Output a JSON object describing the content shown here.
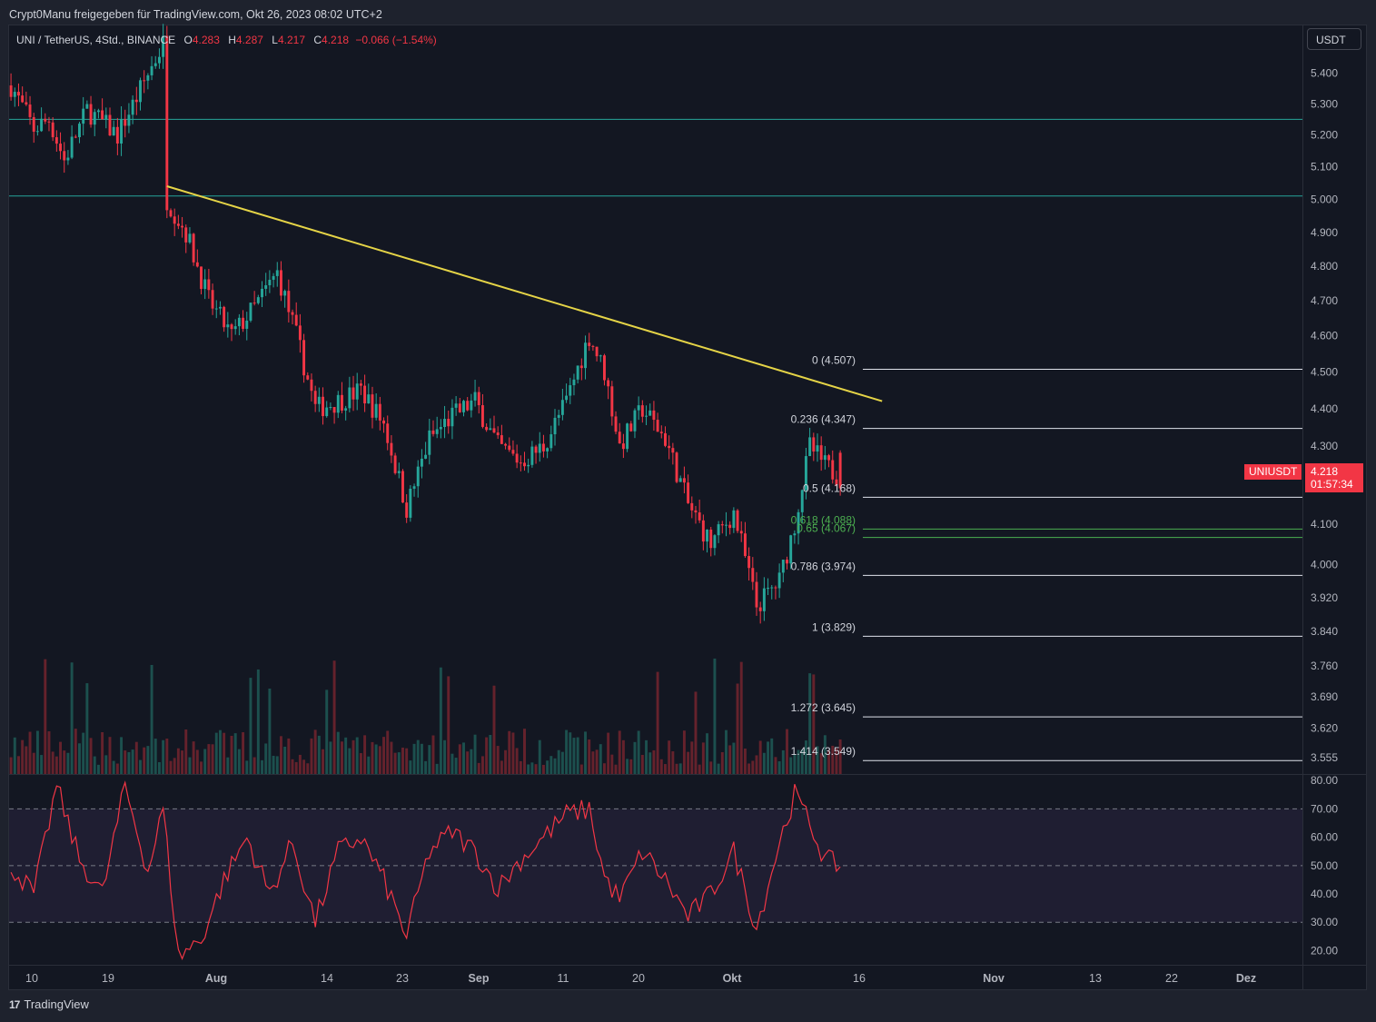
{
  "header": {
    "title": "Crypt0Manu freigegeben für TradingView.com, Okt 26, 2023 08:02 UTC+2"
  },
  "legend": {
    "symbol": "UNI / TetherUS, 4Std., BINANCE",
    "open_label": "O",
    "open": "4.283",
    "high_label": "H",
    "high": "4.287",
    "low_label": "L",
    "low": "4.217",
    "close_label": "C",
    "close": "4.218",
    "change": "−0.066 (−1.54%)"
  },
  "currency_button": "USDT",
  "price_tag": {
    "symbol": "UNIUSDT",
    "price": "4.218",
    "countdown": "01:57:34"
  },
  "footer": {
    "brand": "TradingView",
    "logo_glyph": "17"
  },
  "colors": {
    "up": "#26a69a",
    "down": "#f23645",
    "trendline": "#e5d447",
    "rsi": "#f23645",
    "background": "#131722",
    "horizontal": "#26a69a"
  },
  "chart_data": {
    "type": "candlestick",
    "price_axis": {
      "ticks": [
        "5.400",
        "5.300",
        "5.200",
        "5.100",
        "5.000",
        "4.900",
        "4.800",
        "4.700",
        "4.600",
        "4.500",
        "4.400",
        "4.300",
        "4.100",
        "4.000",
        "3.920",
        "3.840",
        "3.760",
        "3.690",
        "3.620",
        "3.555"
      ],
      "scale": "log",
      "range": [
        3.52,
        5.56
      ]
    },
    "time_axis": {
      "ticks": [
        "10",
        "19",
        "Aug",
        "14",
        "23",
        "Sep",
        "11",
        "20",
        "Okt",
        "16",
        "Nov",
        "13",
        "22",
        "Dez"
      ]
    },
    "anchors": [
      {
        "i": 0,
        "p": 5.36
      },
      {
        "i": 6,
        "p": 5.22
      },
      {
        "i": 10,
        "p": 5.25
      },
      {
        "i": 14,
        "p": 5.12
      },
      {
        "i": 20,
        "p": 5.28
      },
      {
        "i": 28,
        "p": 5.2
      },
      {
        "i": 33,
        "p": 5.32
      },
      {
        "i": 40,
        "p": 5.5
      },
      {
        "i": 41,
        "p": 5.0
      },
      {
        "i": 46,
        "p": 4.9
      },
      {
        "i": 52,
        "p": 4.7
      },
      {
        "i": 58,
        "p": 4.6
      },
      {
        "i": 64,
        "p": 4.68
      },
      {
        "i": 70,
        "p": 4.78
      },
      {
        "i": 75,
        "p": 4.6
      },
      {
        "i": 80,
        "p": 4.4
      },
      {
        "i": 86,
        "p": 4.42
      },
      {
        "i": 92,
        "p": 4.45
      },
      {
        "i": 98,
        "p": 4.36
      },
      {
        "i": 104,
        "p": 4.14
      },
      {
        "i": 110,
        "p": 4.32
      },
      {
        "i": 116,
        "p": 4.38
      },
      {
        "i": 122,
        "p": 4.42
      },
      {
        "i": 128,
        "p": 4.3
      },
      {
        "i": 134,
        "p": 4.26
      },
      {
        "i": 140,
        "p": 4.3
      },
      {
        "i": 146,
        "p": 4.42
      },
      {
        "i": 152,
        "p": 4.6
      },
      {
        "i": 156,
        "p": 4.5
      },
      {
        "i": 160,
        "p": 4.3
      },
      {
        "i": 166,
        "p": 4.4
      },
      {
        "i": 172,
        "p": 4.32
      },
      {
        "i": 178,
        "p": 4.15
      },
      {
        "i": 184,
        "p": 4.05
      },
      {
        "i": 190,
        "p": 4.13
      },
      {
        "i": 196,
        "p": 3.9
      },
      {
        "i": 202,
        "p": 3.96
      },
      {
        "i": 206,
        "p": 4.1
      },
      {
        "i": 210,
        "p": 4.3
      },
      {
        "i": 214,
        "p": 4.25
      },
      {
        "i": 218,
        "p": 4.218
      }
    ],
    "horizontal_lines": [
      5.25,
      5.01
    ],
    "trendline": [
      {
        "i": 41,
        "p": 5.04
      },
      {
        "i": 229,
        "p": 4.42
      }
    ],
    "fibonacci": {
      "levels": [
        {
          "label": "0 (4.507)",
          "value": 4.507
        },
        {
          "label": "0.236 (4.347)",
          "value": 4.347
        },
        {
          "label": "0.5 (4.168)",
          "value": 4.168
        },
        {
          "label": "0.618 (4.088)",
          "value": 4.088
        },
        {
          "label": "0.65 (4.067)",
          "value": 4.067
        },
        {
          "label": "0.786 (3.974)",
          "value": 3.974
        },
        {
          "label": "1 (3.829)",
          "value": 3.829
        },
        {
          "label": "1.272 (3.645)",
          "value": 3.645
        },
        {
          "label": "1.414 (3.549)",
          "value": 3.549
        }
      ],
      "highlight_labels": [
        "0.618 (4.088)",
        "0.65 (4.067)"
      ]
    },
    "rsi": {
      "ticks": [
        "80.00",
        "70.00",
        "60.00",
        "50.00",
        "40.00",
        "30.00",
        "20.00"
      ],
      "range": [
        15,
        82
      ],
      "bands": [
        70,
        50,
        30
      ],
      "anchors": [
        {
          "i": 0,
          "v": 50
        },
        {
          "i": 6,
          "v": 40
        },
        {
          "i": 12,
          "v": 78
        },
        {
          "i": 18,
          "v": 52
        },
        {
          "i": 24,
          "v": 40
        },
        {
          "i": 30,
          "v": 78
        },
        {
          "i": 36,
          "v": 48
        },
        {
          "i": 40,
          "v": 70
        },
        {
          "i": 44,
          "v": 18
        },
        {
          "i": 50,
          "v": 24
        },
        {
          "i": 56,
          "v": 45
        },
        {
          "i": 62,
          "v": 60
        },
        {
          "i": 68,
          "v": 40
        },
        {
          "i": 74,
          "v": 58
        },
        {
          "i": 80,
          "v": 30
        },
        {
          "i": 86,
          "v": 55
        },
        {
          "i": 92,
          "v": 60
        },
        {
          "i": 98,
          "v": 45
        },
        {
          "i": 104,
          "v": 25
        },
        {
          "i": 110,
          "v": 55
        },
        {
          "i": 116,
          "v": 62
        },
        {
          "i": 122,
          "v": 55
        },
        {
          "i": 128,
          "v": 42
        },
        {
          "i": 134,
          "v": 52
        },
        {
          "i": 140,
          "v": 60
        },
        {
          "i": 146,
          "v": 68
        },
        {
          "i": 152,
          "v": 70
        },
        {
          "i": 156,
          "v": 46
        },
        {
          "i": 160,
          "v": 38
        },
        {
          "i": 166,
          "v": 55
        },
        {
          "i": 172,
          "v": 45
        },
        {
          "i": 178,
          "v": 32
        },
        {
          "i": 184,
          "v": 40
        },
        {
          "i": 190,
          "v": 55
        },
        {
          "i": 196,
          "v": 28
        },
        {
          "i": 202,
          "v": 58
        },
        {
          "i": 206,
          "v": 75
        },
        {
          "i": 210,
          "v": 65
        },
        {
          "i": 214,
          "v": 52
        },
        {
          "i": 218,
          "v": 50
        }
      ]
    }
  }
}
